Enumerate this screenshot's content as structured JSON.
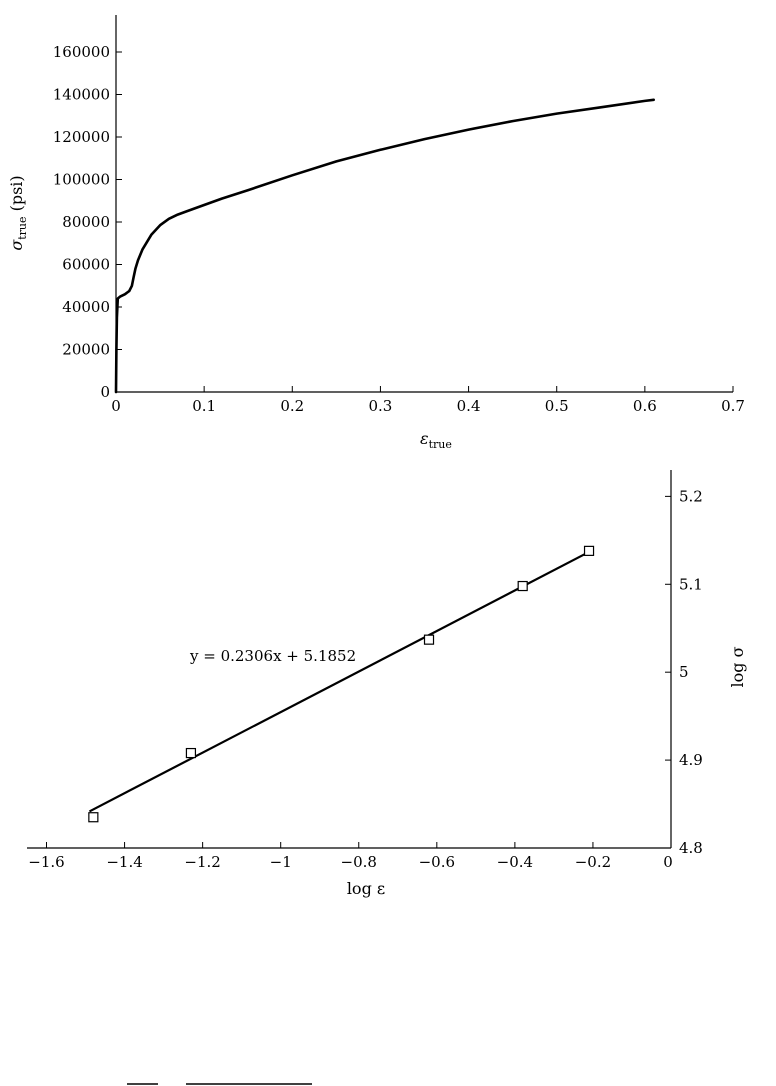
{
  "chart_data": [
    {
      "type": "line",
      "title": "",
      "xlabel": {
        "symbol": "ε",
        "subscript": "true"
      },
      "ylabel": {
        "symbol": "σ",
        "subscript": "true",
        "unit": " (psi)"
      },
      "xlim": [
        0,
        0.7
      ],
      "ylim": [
        0,
        160000
      ],
      "xticks": [
        0,
        0.1,
        0.2,
        0.3,
        0.4,
        0.5,
        0.6,
        0.7
      ],
      "xtick_labels": [
        "0",
        "0.1",
        "0.2",
        "0.3",
        "0.4",
        "0.5",
        "0.6",
        "0.7"
      ],
      "yticks": [
        0,
        20000,
        40000,
        60000,
        80000,
        100000,
        120000,
        140000,
        160000
      ],
      "ytick_labels": [
        "0",
        "20000",
        "40000",
        "60000",
        "80000",
        "100000",
        "120000",
        "140000",
        "160000"
      ],
      "grid": false,
      "series": [
        {
          "x": [
            0,
            0.0005,
            0.001,
            0.002,
            0.005,
            0.01,
            0.015,
            0.018,
            0.02,
            0.022,
            0.025,
            0.03,
            0.04,
            0.05,
            0.06,
            0.07,
            0.08,
            0.1,
            0.12,
            0.15,
            0.2,
            0.25,
            0.3,
            0.35,
            0.4,
            0.45,
            0.5,
            0.55,
            0.6,
            0.61
          ],
          "y": [
            0,
            20000,
            35000,
            44000,
            45000,
            46000,
            47500,
            50000,
            54000,
            58000,
            62000,
            67000,
            74000,
            78500,
            81500,
            83500,
            85000,
            88000,
            91000,
            95000,
            102000,
            108500,
            114000,
            119000,
            123500,
            127500,
            131000,
            134000,
            137000,
            137500
          ]
        }
      ]
    },
    {
      "type": "scatter",
      "title": "",
      "xlabel": "log ε",
      "ylabel": "log σ",
      "xlim": [
        -1.65,
        0
      ],
      "ylim": [
        4.8,
        5.23
      ],
      "xticks": [
        -1.6,
        -1.4,
        -1.2,
        -1,
        -0.8,
        -0.6,
        -0.4,
        -0.2,
        0
      ],
      "xtick_labels": [
        "−1.6",
        "−1.4",
        "−1.2",
        "−1",
        "−0.8",
        "−0.6",
        "−0.4",
        "−0.2",
        "0"
      ],
      "yticks": [
        4.8,
        4.9,
        5,
        5.1,
        5.2
      ],
      "ytick_labels": [
        "4.8",
        "4.9",
        "5",
        "5.1",
        "5.2"
      ],
      "grid": false,
      "series": [
        {
          "x": [
            -1.48,
            -1.23,
            -0.62,
            -0.38,
            -0.21
          ],
          "y": [
            4.835,
            4.908,
            5.037,
            5.098,
            5.138
          ]
        }
      ],
      "trendline": {
        "slope": 0.2306,
        "intercept": 5.1852,
        "x_range": [
          -1.49,
          -0.21
        ]
      },
      "annotation": "y = 0.2306x + 5.1852"
    }
  ]
}
